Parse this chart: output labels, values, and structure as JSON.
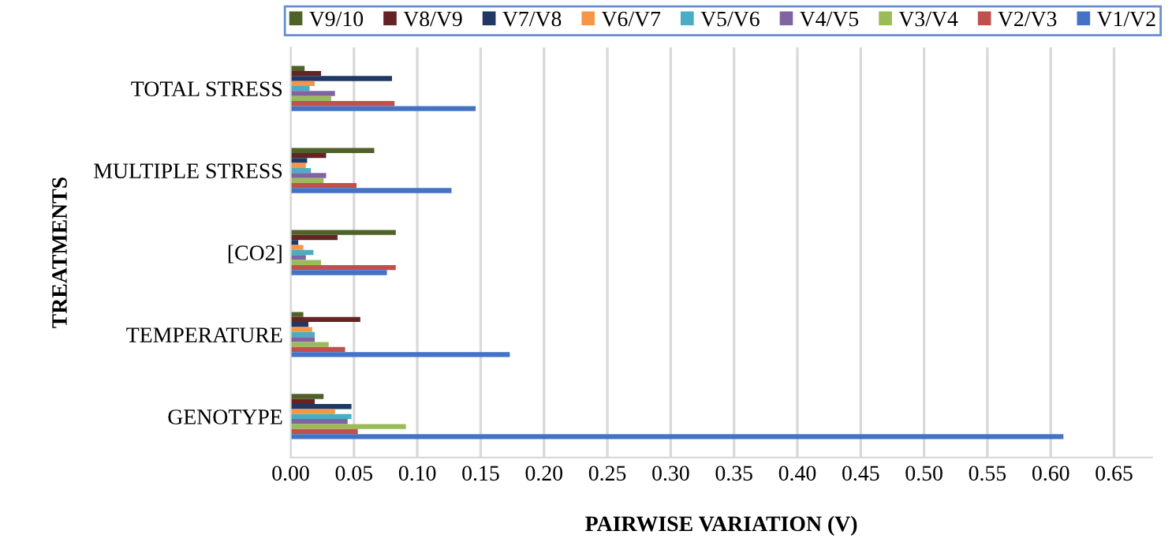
{
  "chart_data": {
    "type": "bar",
    "orientation": "horizontal",
    "xlabel": "PAIRWISE VARIATION (V)",
    "ylabel": "TREATMENTS",
    "categories": [
      "TOTAL STRESS",
      "MULTIPLE STRESS",
      "[CO2]",
      "TEMPERATURE",
      "GENOTYPE"
    ],
    "series": [
      {
        "name": "V9/10",
        "color": "#4f6228",
        "values": [
          0.011,
          0.066,
          0.083,
          0.01,
          0.026
        ]
      },
      {
        "name": "V8/V9",
        "color": "#632423",
        "values": [
          0.024,
          0.028,
          0.037,
          0.055,
          0.019
        ]
      },
      {
        "name": "V7/V8",
        "color": "#1f3864",
        "values": [
          0.08,
          0.013,
          0.006,
          0.014,
          0.048
        ]
      },
      {
        "name": "V6/V7",
        "color": "#f79646",
        "values": [
          0.019,
          0.012,
          0.01,
          0.017,
          0.035
        ]
      },
      {
        "name": "V5/V6",
        "color": "#4bacc6",
        "values": [
          0.015,
          0.016,
          0.018,
          0.019,
          0.048
        ]
      },
      {
        "name": "V4/V5",
        "color": "#8064a2",
        "values": [
          0.035,
          0.028,
          0.012,
          0.019,
          0.045
        ]
      },
      {
        "name": "V3/V4",
        "color": "#9bbb59",
        "values": [
          0.032,
          0.026,
          0.024,
          0.03,
          0.091
        ]
      },
      {
        "name": "V2/V3",
        "color": "#c0504d",
        "values": [
          0.082,
          0.052,
          0.083,
          0.043,
          0.053
        ]
      },
      {
        "name": "V1/V2",
        "color": "#4472c4",
        "values": [
          0.146,
          0.127,
          0.076,
          0.173,
          0.61
        ]
      }
    ],
    "xlim": [
      0,
      0.68
    ],
    "xticks": [
      {
        "value": 0,
        "label": "0.00"
      },
      {
        "value": 0.05,
        "label": "0.05"
      },
      {
        "value": 0.1,
        "label": "0.10"
      },
      {
        "value": 0.15,
        "label": "0.15"
      },
      {
        "value": 0.2,
        "label": "0.20"
      },
      {
        "value": 0.25,
        "label": "0.25"
      },
      {
        "value": 0.3,
        "label": "0.30"
      },
      {
        "value": 0.35,
        "label": "0.35"
      },
      {
        "value": 0.4,
        "label": "0.40"
      },
      {
        "value": 0.45,
        "label": "0.45"
      },
      {
        "value": 0.5,
        "label": "0.50"
      },
      {
        "value": 0.55,
        "label": "0.55"
      },
      {
        "value": 0.6,
        "label": "0.60"
      },
      {
        "value": 0.65,
        "label": "0.65"
      }
    ],
    "grid": "x",
    "legend": "top"
  }
}
